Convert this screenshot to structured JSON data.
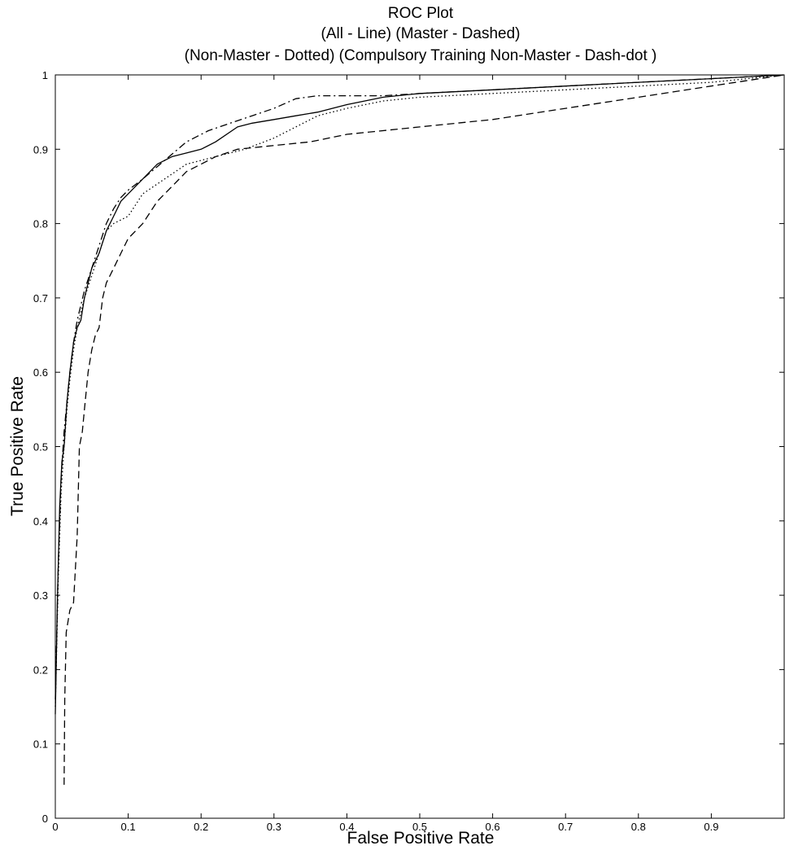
{
  "chart_data": {
    "type": "line",
    "title_lines": [
      "ROC Plot",
      "(All - Line) (Master - Dashed)",
      "(Non-Master - Dotted) (Compulsory Training Non-Master - Dash-dot )"
    ],
    "xlabel": "False Positive Rate",
    "ylabel": "True Positive Rate",
    "xlim": [
      0,
      1
    ],
    "ylim": [
      0,
      1
    ],
    "x_ticks": [
      "0",
      "0.1",
      "0.2",
      "0.3",
      "0.4",
      "0.5",
      "0.6",
      "0.7",
      "0.8",
      "0.9"
    ],
    "y_ticks": [
      "0",
      "0.1",
      "0.2",
      "0.3",
      "0.4",
      "0.5",
      "0.6",
      "0.7",
      "0.8",
      "0.9",
      "1"
    ],
    "grid": false,
    "legend": "none",
    "series": [
      {
        "style": "solid",
        "x": [
          0,
          0.003,
          0.006,
          0.009,
          0.012,
          0.016,
          0.02,
          0.025,
          0.03,
          0.035,
          0.04,
          0.05,
          0.06,
          0.07,
          0.08,
          0.09,
          0.1,
          0.12,
          0.14,
          0.16,
          0.18,
          0.2,
          0.22,
          0.25,
          0.27,
          0.3,
          0.33,
          0.36,
          0.4,
          0.45,
          0.5,
          0.6,
          0.7,
          0.8,
          0.9,
          1.0
        ],
        "y": [
          0.14,
          0.3,
          0.42,
          0.48,
          0.5,
          0.56,
          0.6,
          0.64,
          0.66,
          0.67,
          0.7,
          0.74,
          0.76,
          0.79,
          0.81,
          0.83,
          0.84,
          0.86,
          0.88,
          0.89,
          0.895,
          0.9,
          0.91,
          0.93,
          0.935,
          0.94,
          0.945,
          0.95,
          0.96,
          0.97,
          0.975,
          0.98,
          0.985,
          0.99,
          0.995,
          1.0
        ]
      },
      {
        "style": "dashed",
        "x": [
          0.012,
          0.013,
          0.015,
          0.02,
          0.025,
          0.03,
          0.033,
          0.037,
          0.04,
          0.045,
          0.05,
          0.055,
          0.06,
          0.065,
          0.07,
          0.08,
          0.09,
          0.1,
          0.12,
          0.14,
          0.16,
          0.18,
          0.2,
          0.22,
          0.25,
          0.3,
          0.35,
          0.4,
          0.5,
          0.6,
          0.7,
          0.8,
          0.9,
          1.0
        ],
        "y": [
          0.045,
          0.16,
          0.25,
          0.28,
          0.29,
          0.38,
          0.5,
          0.52,
          0.55,
          0.6,
          0.63,
          0.65,
          0.66,
          0.7,
          0.72,
          0.74,
          0.76,
          0.78,
          0.8,
          0.83,
          0.85,
          0.87,
          0.88,
          0.89,
          0.9,
          0.905,
          0.91,
          0.92,
          0.93,
          0.94,
          0.955,
          0.97,
          0.985,
          1.0
        ]
      },
      {
        "style": "dotted",
        "x": [
          0,
          0.004,
          0.008,
          0.012,
          0.016,
          0.02,
          0.025,
          0.03,
          0.04,
          0.05,
          0.06,
          0.07,
          0.08,
          0.1,
          0.12,
          0.15,
          0.18,
          0.22,
          0.26,
          0.3,
          0.33,
          0.36,
          0.4,
          0.45,
          0.5,
          0.6,
          0.7,
          0.8,
          0.9,
          1.0
        ],
        "y": [
          0.15,
          0.32,
          0.44,
          0.5,
          0.55,
          0.59,
          0.63,
          0.66,
          0.7,
          0.73,
          0.76,
          0.79,
          0.8,
          0.81,
          0.84,
          0.86,
          0.88,
          0.89,
          0.9,
          0.915,
          0.93,
          0.945,
          0.955,
          0.965,
          0.97,
          0.975,
          0.98,
          0.985,
          0.99,
          1.0
        ]
      },
      {
        "style": "dashdot",
        "x": [
          0,
          0.004,
          0.008,
          0.012,
          0.016,
          0.02,
          0.025,
          0.03,
          0.04,
          0.05,
          0.06,
          0.07,
          0.08,
          0.09,
          0.1,
          0.12,
          0.15,
          0.18,
          0.21,
          0.24,
          0.27,
          0.3,
          0.33,
          0.36,
          0.4,
          0.45,
          0.5,
          0.6,
          0.7,
          0.8,
          0.9,
          1.0
        ],
        "y": [
          0.16,
          0.34,
          0.46,
          0.52,
          0.56,
          0.6,
          0.64,
          0.67,
          0.71,
          0.74,
          0.77,
          0.8,
          0.82,
          0.835,
          0.845,
          0.86,
          0.885,
          0.91,
          0.925,
          0.935,
          0.945,
          0.955,
          0.968,
          0.972,
          0.972,
          0.972,
          0.975,
          0.98,
          0.985,
          0.99,
          0.995,
          1.0
        ]
      }
    ]
  }
}
